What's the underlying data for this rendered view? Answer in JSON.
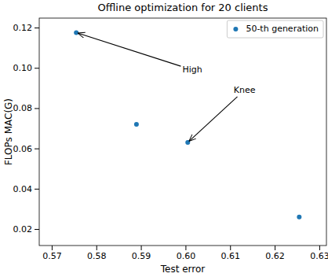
{
  "chart_data": {
    "type": "scatter",
    "title": "Offline optimization for 20 clients",
    "x_label": "Test error",
    "y_label": "FLOPs MAC(G)",
    "series": [
      {
        "name": "50-th generation",
        "color": "#1f77b4",
        "marker": "circle",
        "x": [
          0.5755,
          0.589,
          0.6005,
          0.6255
        ],
        "values": [
          0.1175,
          0.072,
          0.063,
          0.026
        ]
      }
    ],
    "xlim": [
      0.5672,
      0.6316
    ],
    "xticks": [
      0.57,
      0.58,
      0.59,
      {
        "value": 0.6,
        "label": "0.60"
      },
      0.61,
      0.62,
      0.63
    ],
    "ylim": [
      0.0118,
      0.1247
    ],
    "yticks": [
      0.02,
      0.04,
      0.06,
      0.08,
      {
        "value": 0.1,
        "label": "0.10"
      },
      0.12
    ],
    "legend": "upper right",
    "annotations": [
      {
        "text": "High",
        "xy": [
          0.5755,
          0.1175
        ],
        "xytext": [
          0.5993,
          0.0988
        ]
      },
      {
        "text": "Knee",
        "xy": [
          0.6005,
          0.063
        ],
        "xytext": [
          0.6108,
          0.0888
        ]
      }
    ]
  }
}
